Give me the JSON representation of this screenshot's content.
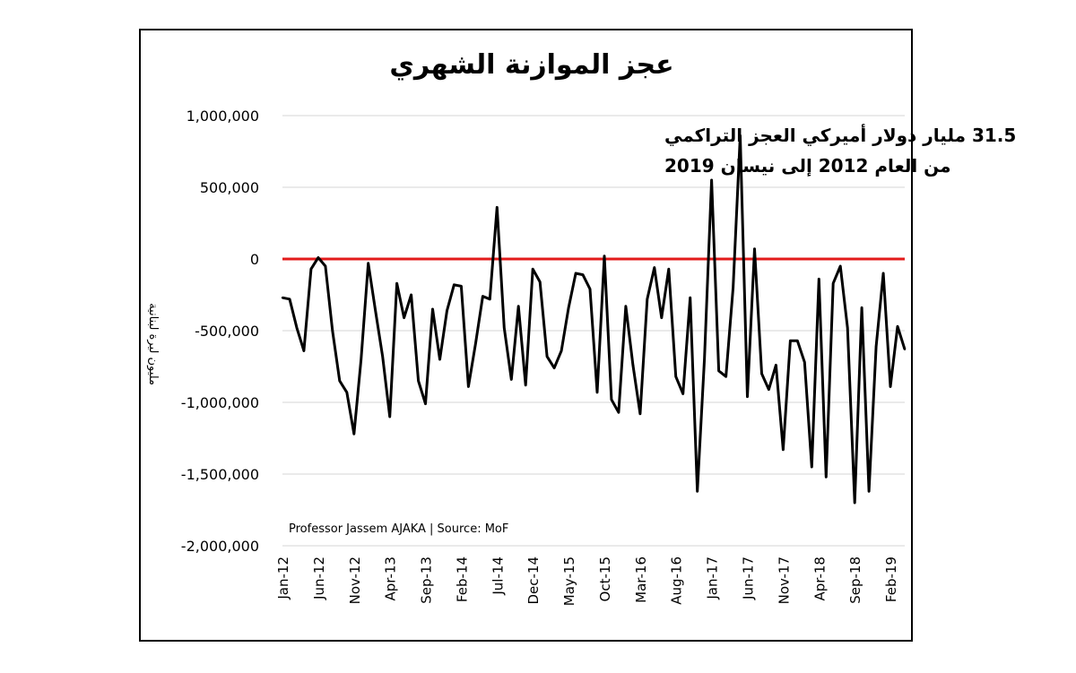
{
  "chart_data": {
    "type": "line",
    "title": "عجز الموازنة الشهري",
    "annotation_lines": [
      "31.5 مليار دولار أميركي العجز التراكمي",
      "من العام 2012 إلى نيسان 2019"
    ],
    "ylabel": "مليون ليرة لبنانية",
    "xlabel": "",
    "source": "Professor Jassem AJAKA | Source: MoF",
    "ylim": [
      -2000000,
      1000000
    ],
    "yticks": [
      1000000,
      500000,
      0,
      -500000,
      -1000000,
      -1500000,
      -2000000
    ],
    "ytick_labels": [
      "1,000,000",
      "500,000",
      "0",
      "-500,000",
      "-1,000,000",
      "-1,500,000",
      "-2,000,000"
    ],
    "xtick_labels": [
      "Jan-12",
      "Jun-12",
      "Nov-12",
      "Apr-13",
      "Sep-13",
      "Feb-14",
      "Jul-14",
      "Dec-14",
      "May-15",
      "Oct-15",
      "Mar-16",
      "Aug-16",
      "Jan-17",
      "Jun-17",
      "Nov-17",
      "Apr-18",
      "Sep-18",
      "Feb-19"
    ],
    "xtick_every_months": 5,
    "grid": true,
    "legend": "none",
    "zero_line_color": "#e31b1b",
    "line_color": "#000000",
    "series": [
      {
        "start": "Jan-12",
        "values": [
          -270000,
          -280000,
          -480000,
          -640000,
          -70000,
          10000,
          -50000,
          -500000,
          -850000,
          -930000,
          -1220000,
          -700000,
          -30000,
          -360000,
          -680000,
          -1100000,
          -170000,
          -410000,
          -250000,
          -850000,
          -1010000,
          -350000,
          -700000,
          -360000,
          -180000,
          -190000,
          -890000,
          -590000,
          -260000,
          -280000,
          360000,
          -480000,
          -840000,
          -330000,
          -880000,
          -70000,
          -160000,
          -680000,
          -760000,
          -640000,
          -340000,
          -100000,
          -110000,
          -210000,
          -930000,
          20000,
          -980000,
          -1070000,
          -330000,
          -740000,
          -1080000,
          -280000,
          -60000,
          -410000,
          -70000,
          -820000,
          -940000,
          -270000,
          -1620000,
          -700000,
          550000,
          -780000,
          -820000,
          -200000,
          860000,
          -960000,
          70000,
          -800000,
          -910000,
          -740000,
          -1330000,
          -570000,
          -570000,
          -720000,
          -1450000,
          -140000,
          -1520000,
          -170000,
          -50000,
          -480000,
          -1700000,
          -340000,
          -1620000,
          -610000,
          -100000,
          -890000,
          -470000,
          -630000
        ]
      }
    ]
  }
}
